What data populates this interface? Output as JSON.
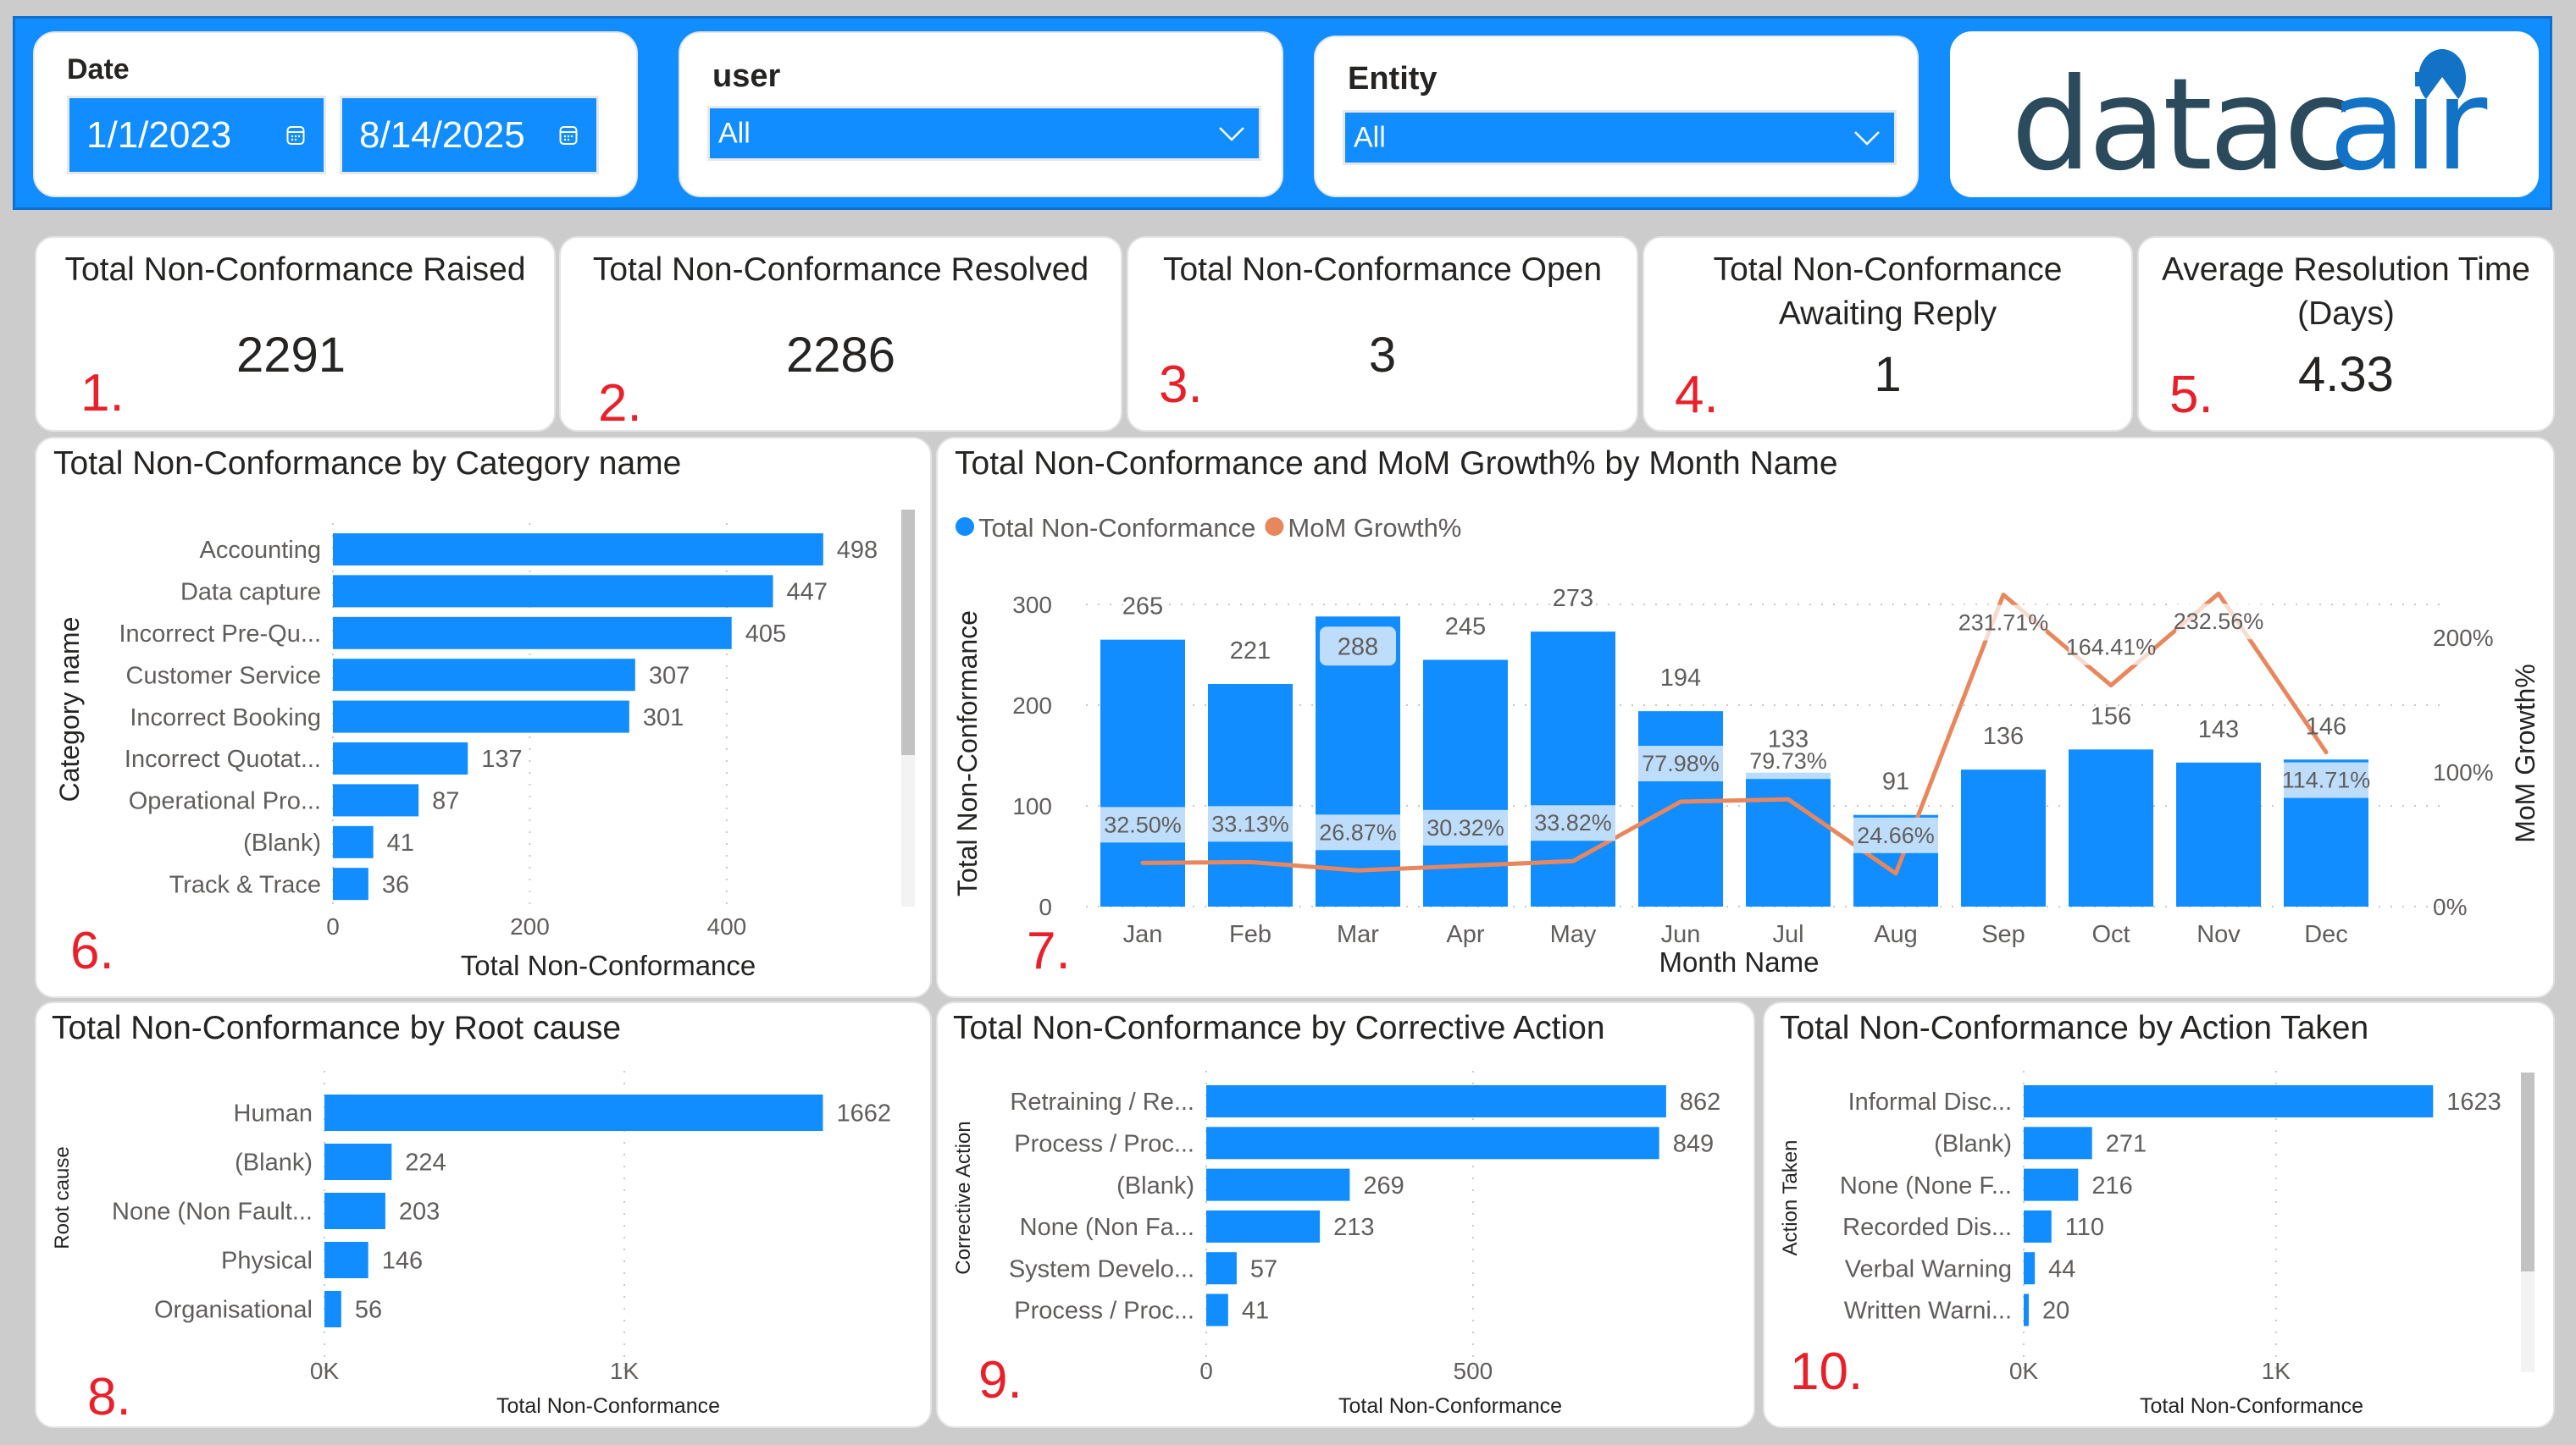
{
  "filters": {
    "date": {
      "title": "Date",
      "start": "1/1/2023",
      "end": "8/14/2025",
      "icon": "calendar-icon"
    },
    "user": {
      "title": "user",
      "value": "All",
      "icon": "chevron-down-icon"
    },
    "entity": {
      "title": "Entity",
      "value": "All",
      "icon": "chevron-down-icon"
    }
  },
  "logo": {
    "text_dark": "datac",
    "text_accent": "air",
    "dark_color": "#2b4a5c",
    "accent_color": "#1172c6"
  },
  "colors": {
    "bar": "#118dff",
    "line": "#e8875e",
    "label_band": "#bdddfb",
    "marker": "#e8202a",
    "header": "#118dff"
  },
  "kpis": [
    {
      "marker": "1.",
      "title": "Total Non-Conformance Raised",
      "value": "2291"
    },
    {
      "marker": "2.",
      "title": "Total Non-Conformance Resolved",
      "value": "2286"
    },
    {
      "marker": "3.",
      "title": "Total Non-Conformance Open",
      "value": "3"
    },
    {
      "marker": "4.",
      "title": "Total Non-Conformance Awaiting Reply",
      "value": "1"
    },
    {
      "marker": "5.",
      "title": "Average Resolution Time (Days)",
      "value": "4.33"
    }
  ],
  "chart_data": [
    {
      "id": "category",
      "marker": "6.",
      "type": "bar",
      "orientation": "horizontal",
      "title": "Total Non-Conformance by Category name",
      "xlabel": "Total Non-Conformance",
      "ylabel": "Category name",
      "categories": [
        "Accounting",
        "Data capture",
        "Incorrect Pre-Qu...",
        "Customer Service",
        "Incorrect Booking",
        "Incorrect Quotat...",
        "Operational Pro...",
        "(Blank)",
        "Track & Trace"
      ],
      "values": [
        498,
        447,
        405,
        307,
        301,
        137,
        87,
        41,
        36
      ],
      "xticks": [
        0,
        200,
        400
      ],
      "xtick_labels": [
        "0",
        "200",
        "400"
      ],
      "xlim": [
        0,
        530
      ],
      "grid": true,
      "scrollbar": true
    },
    {
      "id": "monthly",
      "marker": "7.",
      "type": "bar+line",
      "title": "Total Non-Conformance and MoM Growth% by Month Name",
      "xlabel": "Month Name",
      "ylabel": "Total Non-Conformance",
      "y2label": "MoM Growth%",
      "legend": [
        {
          "name": "Total Non-Conformance",
          "color": "#118dff"
        },
        {
          "name": "MoM Growth%",
          "color": "#e8875e"
        }
      ],
      "legend_position": "top-left",
      "categories": [
        "Jan",
        "Feb",
        "Mar",
        "Apr",
        "May",
        "Jun",
        "Jul",
        "Aug",
        "Sep",
        "Oct",
        "Nov",
        "Dec"
      ],
      "series": [
        {
          "name": "Total Non-Conformance",
          "type": "bar",
          "axis": "left",
          "values": [
            265,
            221,
            288,
            245,
            273,
            194,
            133,
            91,
            136,
            156,
            143,
            146
          ]
        },
        {
          "name": "MoM Growth%",
          "type": "line",
          "axis": "right",
          "values": [
            32.5,
            33.13,
            26.87,
            30.32,
            33.82,
            77.98,
            79.73,
            24.66,
            231.71,
            164.41,
            232.56,
            114.71
          ],
          "labels": [
            "32.50%",
            "33.13%",
            "26.87%",
            "30.32%",
            "33.82%",
            "77.98%",
            "79.73%",
            "24.66%",
            "231.71%",
            "164.41%",
            "232.56%",
            "114.71%"
          ],
          "label_positions": [
            "above",
            "above",
            "above",
            "above",
            "above",
            "above",
            "above",
            "above",
            "below",
            "above",
            "below",
            "below"
          ]
        }
      ],
      "highlighted_bar": "Mar",
      "yticks": [
        0,
        100,
        200,
        300
      ],
      "ylim": [
        0,
        300
      ],
      "y2ticks": [
        "0%",
        "100%",
        "200%"
      ],
      "y2lim": [
        0,
        225
      ],
      "grid": true
    },
    {
      "id": "rootcause",
      "marker": "8.",
      "type": "bar",
      "orientation": "horizontal",
      "title": "Total Non-Conformance by Root cause",
      "xlabel": "Total Non-Conformance",
      "ylabel": "Root cause",
      "categories": [
        "Human",
        "(Blank)",
        "None (Non Fault...",
        "Physical",
        "Organisational"
      ],
      "values": [
        1662,
        224,
        203,
        146,
        56
      ],
      "xticks": [
        0,
        1000
      ],
      "xtick_labels": [
        "0K",
        "1K"
      ],
      "xlim": [
        0,
        1850
      ],
      "grid": true,
      "scrollbar": false
    },
    {
      "id": "corrective",
      "marker": "9.",
      "type": "bar",
      "orientation": "horizontal",
      "title": "Total Non-Conformance by Corrective Action",
      "xlabel": "Total Non-Conformance",
      "ylabel": "Corrective Action",
      "categories": [
        "Retraining / Re...",
        "Process / Proc...",
        "(Blank)",
        "None (Non Fa...",
        "System Develo...",
        "Process / Proc..."
      ],
      "values": [
        862,
        849,
        269,
        213,
        57,
        41
      ],
      "xticks": [
        0,
        500
      ],
      "xtick_labels": [
        "0",
        "500"
      ],
      "xlim": [
        0,
        940
      ],
      "grid": true,
      "scrollbar": false
    },
    {
      "id": "actiontaken",
      "marker": "10.",
      "type": "bar",
      "orientation": "horizontal",
      "title": "Total Non-Conformance by Action Taken",
      "xlabel": "Total Non-Conformance",
      "ylabel": "Action Taken",
      "categories": [
        "Informal Disc...",
        "(Blank)",
        "None (None F...",
        "Recorded Dis...",
        "Verbal Warning",
        "Written Warni..."
      ],
      "values": [
        1623,
        271,
        216,
        110,
        44,
        20
      ],
      "xticks": [
        0,
        1000
      ],
      "xtick_labels": [
        "0K",
        "1K"
      ],
      "xlim": [
        0,
        1800
      ],
      "grid": true,
      "scrollbar": true
    }
  ]
}
